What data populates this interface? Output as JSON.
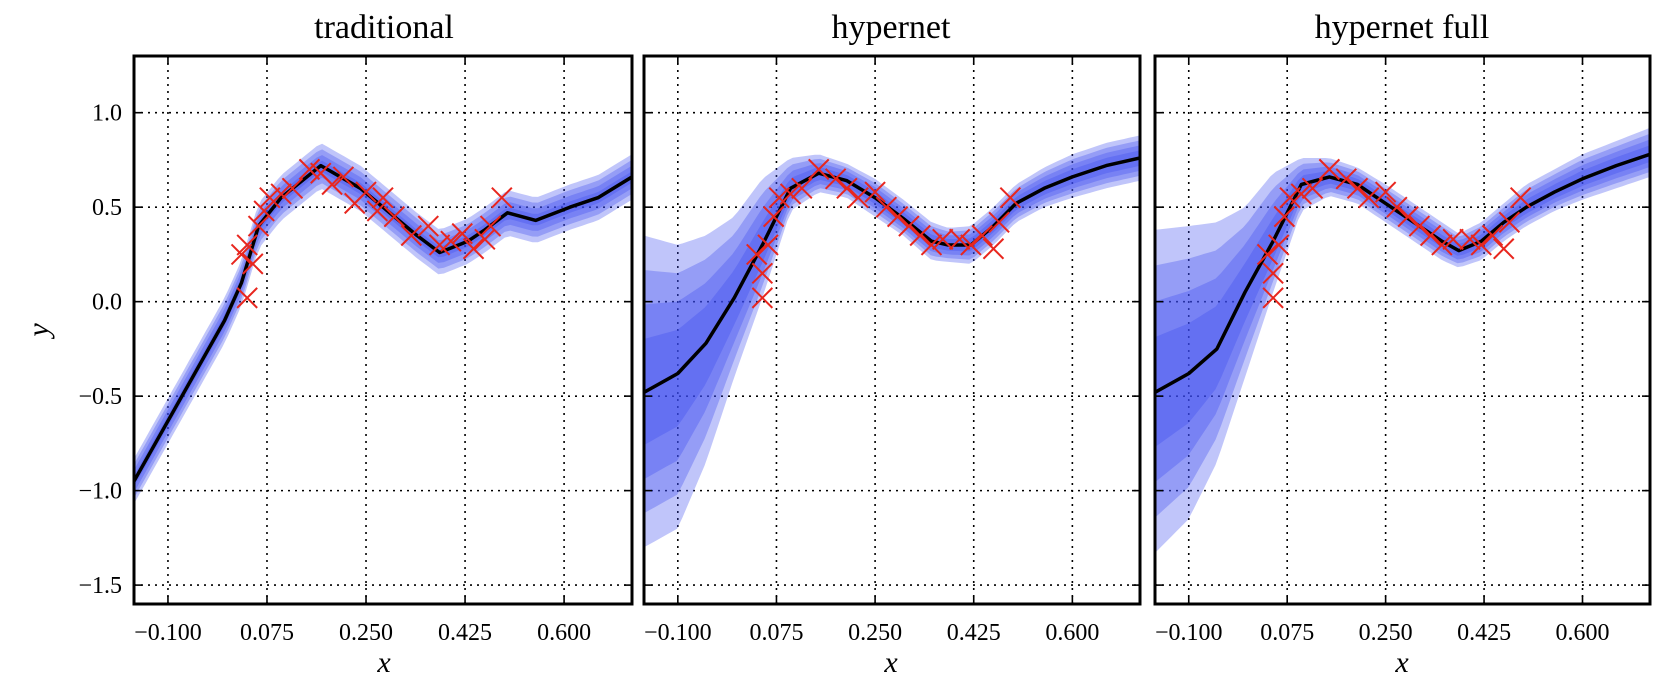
{
  "chart_data": [
    {
      "type": "line",
      "title": "traditional",
      "xlabel": "x",
      "ylabel": "y",
      "xlim": [
        -0.16,
        0.72
      ],
      "ylim": [
        -1.6,
        1.3
      ],
      "x_ticks": [
        "−0.100",
        "0.075",
        "0.250",
        "0.425",
        "0.600"
      ],
      "y_ticks": [
        "1.0",
        "0.5",
        "0.0",
        "−0.5",
        "−1.0",
        "−1.5"
      ],
      "grid": true,
      "colors": {
        "band": "#3b4cf0",
        "mean": "#000000",
        "observations": "#e8261e"
      },
      "mean": {
        "x": [
          -0.16,
          0.0,
          0.03,
          0.06,
          0.1,
          0.17,
          0.24,
          0.3,
          0.34,
          0.38,
          0.43,
          0.46,
          0.5,
          0.55,
          0.61,
          0.66,
          0.72
        ],
        "y": [
          -0.95,
          -0.1,
          0.1,
          0.4,
          0.55,
          0.72,
          0.6,
          0.45,
          0.35,
          0.26,
          0.32,
          0.38,
          0.47,
          0.43,
          0.5,
          0.55,
          0.66
        ]
      },
      "uncertainty_band_halfwidths": [
        0.03,
        0.06,
        0.09,
        0.12
      ],
      "observations": {
        "x": [
          0.03,
          0.04,
          0.04,
          0.05,
          0.06,
          0.07,
          0.08,
          0.1,
          0.12,
          0.15,
          0.17,
          0.19,
          0.21,
          0.23,
          0.25,
          0.27,
          0.28,
          0.3,
          0.33,
          0.36,
          0.38,
          0.4,
          0.42,
          0.44,
          0.46,
          0.47,
          0.49
        ],
        "y": [
          0.25,
          0.3,
          0.02,
          0.2,
          0.4,
          0.48,
          0.55,
          0.57,
          0.6,
          0.7,
          0.68,
          0.62,
          0.66,
          0.52,
          0.58,
          0.48,
          0.55,
          0.45,
          0.35,
          0.4,
          0.3,
          0.32,
          0.36,
          0.28,
          0.33,
          0.4,
          0.55
        ]
      }
    },
    {
      "type": "line",
      "title": "hypernet",
      "xlabel": "x",
      "ylabel": "",
      "xlim": [
        -0.16,
        0.72
      ],
      "ylim": [
        -1.6,
        1.3
      ],
      "x_ticks": [
        "−0.100",
        "0.075",
        "0.250",
        "0.425",
        "0.600"
      ],
      "grid": true,
      "colors": {
        "band": "#3b4cf0",
        "mean": "#000000",
        "observations": "#e8261e"
      },
      "mean": {
        "x": [
          -0.16,
          -0.1,
          -0.05,
          0.0,
          0.05,
          0.1,
          0.15,
          0.2,
          0.25,
          0.3,
          0.35,
          0.38,
          0.42,
          0.46,
          0.5,
          0.55,
          0.6,
          0.66,
          0.72
        ],
        "y": [
          -0.48,
          -0.38,
          -0.22,
          0.02,
          0.3,
          0.6,
          0.68,
          0.64,
          0.55,
          0.44,
          0.32,
          0.3,
          0.3,
          0.4,
          0.52,
          0.6,
          0.66,
          0.72,
          0.76
        ]
      },
      "uncertainty_bands": {
        "x": [
          -0.16,
          -0.1,
          -0.05,
          0.0,
          0.05,
          0.1,
          0.15,
          0.2,
          0.25,
          0.3,
          0.35,
          0.38,
          0.42,
          0.46,
          0.5,
          0.55,
          0.6,
          0.66,
          0.72
        ],
        "outer_upper": [
          0.35,
          0.3,
          0.35,
          0.45,
          0.65,
          0.76,
          0.78,
          0.73,
          0.65,
          0.54,
          0.42,
          0.39,
          0.4,
          0.5,
          0.62,
          0.71,
          0.78,
          0.84,
          0.88
        ],
        "outer_lower": [
          -1.3,
          -1.2,
          -0.85,
          -0.4,
          0.02,
          0.48,
          0.58,
          0.55,
          0.45,
          0.35,
          0.22,
          0.21,
          0.2,
          0.3,
          0.42,
          0.5,
          0.55,
          0.6,
          0.64
        ]
      },
      "observations": {
        "x": [
          0.04,
          0.05,
          0.05,
          0.06,
          0.07,
          0.08,
          0.1,
          0.12,
          0.15,
          0.18,
          0.2,
          0.22,
          0.25,
          0.27,
          0.29,
          0.31,
          0.33,
          0.35,
          0.37,
          0.4,
          0.42,
          0.44,
          0.46,
          0.47,
          0.49
        ],
        "y": [
          0.25,
          0.15,
          0.02,
          0.3,
          0.45,
          0.55,
          0.57,
          0.6,
          0.7,
          0.65,
          0.6,
          0.55,
          0.58,
          0.5,
          0.45,
          0.4,
          0.35,
          0.3,
          0.33,
          0.33,
          0.3,
          0.35,
          0.28,
          0.42,
          0.55
        ]
      }
    },
    {
      "type": "line",
      "title": "hypernet full",
      "xlabel": "x",
      "ylabel": "",
      "xlim": [
        -0.16,
        0.72
      ],
      "ylim": [
        -1.6,
        1.3
      ],
      "x_ticks": [
        "−0.100",
        "0.075",
        "0.250",
        "0.425",
        "0.600"
      ],
      "grid": true,
      "colors": {
        "band": "#3b4cf0",
        "mean": "#000000",
        "observations": "#e8261e"
      },
      "mean": {
        "x": [
          -0.16,
          -0.1,
          -0.05,
          0.0,
          0.05,
          0.1,
          0.15,
          0.2,
          0.25,
          0.3,
          0.35,
          0.38,
          0.42,
          0.46,
          0.5,
          0.55,
          0.6,
          0.66,
          0.72
        ],
        "y": [
          -0.48,
          -0.38,
          -0.25,
          0.05,
          0.32,
          0.62,
          0.66,
          0.62,
          0.52,
          0.42,
          0.32,
          0.27,
          0.32,
          0.42,
          0.5,
          0.58,
          0.65,
          0.72,
          0.78
        ]
      },
      "uncertainty_bands": {
        "x": [
          -0.16,
          -0.1,
          -0.05,
          0.0,
          0.05,
          0.1,
          0.15,
          0.2,
          0.25,
          0.3,
          0.35,
          0.38,
          0.42,
          0.46,
          0.5,
          0.55,
          0.6,
          0.66,
          0.72
        ],
        "outer_upper": [
          0.38,
          0.4,
          0.42,
          0.5,
          0.68,
          0.76,
          0.76,
          0.71,
          0.62,
          0.52,
          0.42,
          0.36,
          0.42,
          0.52,
          0.62,
          0.7,
          0.78,
          0.85,
          0.92
        ],
        "outer_lower": [
          -1.33,
          -1.15,
          -0.85,
          -0.4,
          0.05,
          0.48,
          0.56,
          0.52,
          0.42,
          0.32,
          0.22,
          0.18,
          0.22,
          0.32,
          0.4,
          0.48,
          0.54,
          0.6,
          0.66
        ]
      },
      "observations": {
        "x": [
          0.04,
          0.05,
          0.05,
          0.06,
          0.07,
          0.08,
          0.1,
          0.12,
          0.15,
          0.18,
          0.2,
          0.22,
          0.25,
          0.27,
          0.29,
          0.31,
          0.33,
          0.35,
          0.37,
          0.4,
          0.42,
          0.44,
          0.46,
          0.47,
          0.49
        ],
        "y": [
          0.25,
          0.15,
          0.02,
          0.3,
          0.45,
          0.55,
          0.57,
          0.6,
          0.7,
          0.65,
          0.6,
          0.55,
          0.58,
          0.5,
          0.45,
          0.4,
          0.35,
          0.3,
          0.33,
          0.33,
          0.3,
          0.35,
          0.28,
          0.42,
          0.55
        ]
      }
    }
  ]
}
